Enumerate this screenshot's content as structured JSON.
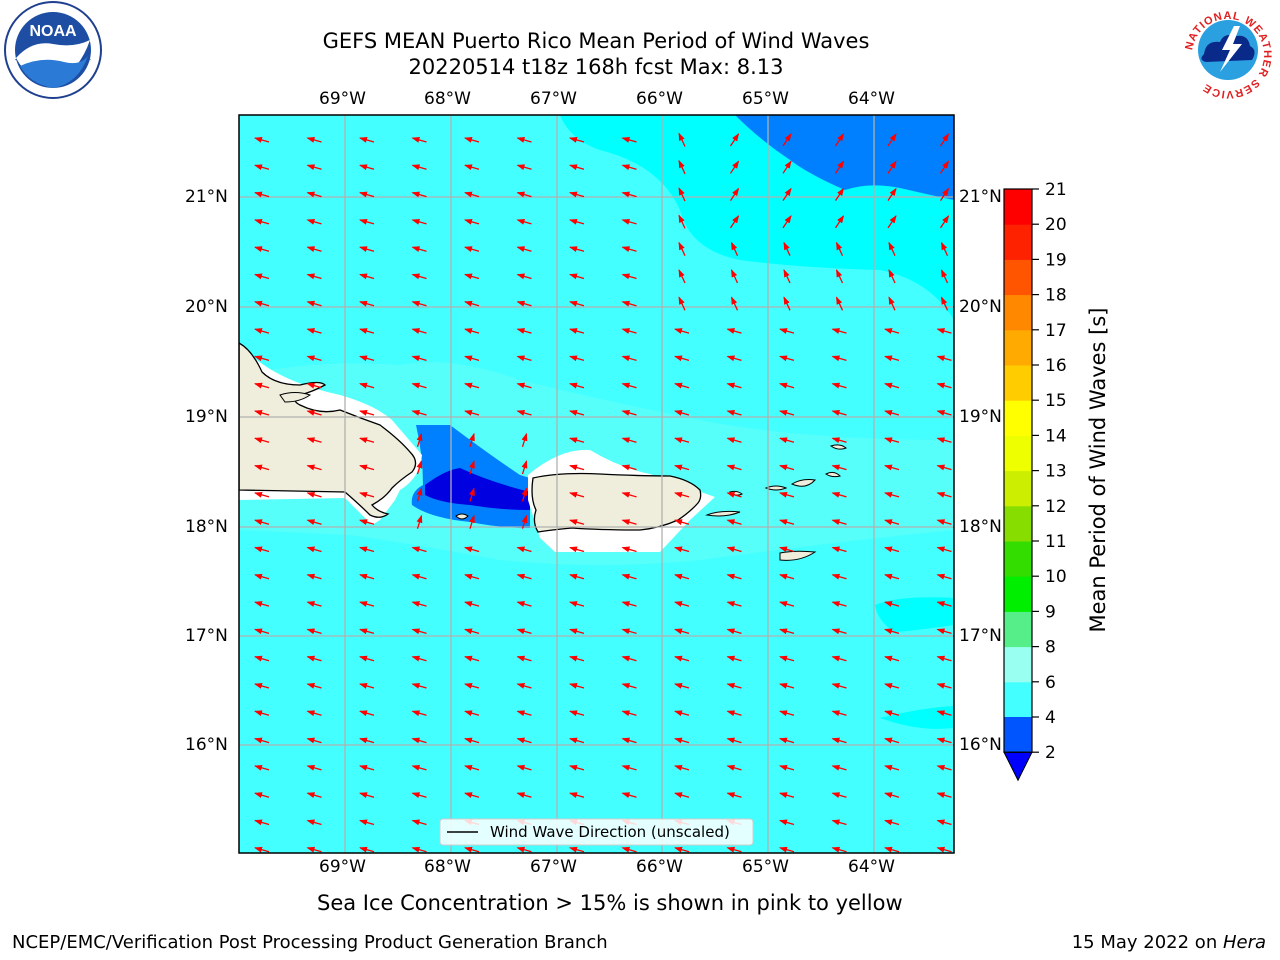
{
  "title": {
    "line1": "GEFS MEAN Puerto Rico Mean Period of Wind Waves",
    "line2": "20220514 t18z 168h fcst   Max: 8.13"
  },
  "logos": {
    "left": {
      "text": "NOAA",
      "ring_text": "NATIONAL OCEANIC AND ATMOSPHERIC ADMINISTRATION · U.S. DEPARTMENT OF COMMERCE"
    },
    "right": {
      "ring_text": "NATIONAL WEATHER SERVICE"
    }
  },
  "map": {
    "lon_labels": [
      "69°W",
      "68°W",
      "67°W",
      "66°W",
      "65°W",
      "64°W"
    ],
    "lat_labels": [
      "21°N",
      "20°N",
      "19°N",
      "18°N",
      "17°N",
      "16°N"
    ],
    "legend": "Wind Wave Direction (unscaled)",
    "colors": {
      "ocean": "#44ffff",
      "ocean_light": "#88fff0",
      "cyan": "#00ffff",
      "blue": "#0080ff",
      "dark_blue": "#0000e0",
      "land": "#efeedd",
      "arrow": "#ff0000",
      "grid": "#b0b0b0"
    }
  },
  "colorbar": {
    "label": "Mean Period of Wind Waves [s]",
    "ticks": [
      "2",
      "4",
      "6",
      "8",
      "9",
      "10",
      "11",
      "12",
      "13",
      "14",
      "15",
      "16",
      "17",
      "18",
      "19",
      "20",
      "21"
    ],
    "colors": [
      "#0055ff",
      "#00ffff",
      "#44ffff",
      "#99fff0",
      "#55ee88",
      "#00ee00",
      "#33dd00",
      "#88dd00",
      "#ccee00",
      "#eeff00",
      "#ffff00",
      "#ffcc00",
      "#ffaa00",
      "#ff8800",
      "#ff5500",
      "#ff2200",
      "#ff0000"
    ],
    "under_color": "#0000ff"
  },
  "subtitle": "Sea Ice Concentration > 15% is shown in pink to yellow",
  "footer": {
    "left": "NCEP/EMC/Verification Post Processing Product Generation Branch",
    "right_prefix": "15 May 2022 on ",
    "right_machine": "Hera"
  }
}
